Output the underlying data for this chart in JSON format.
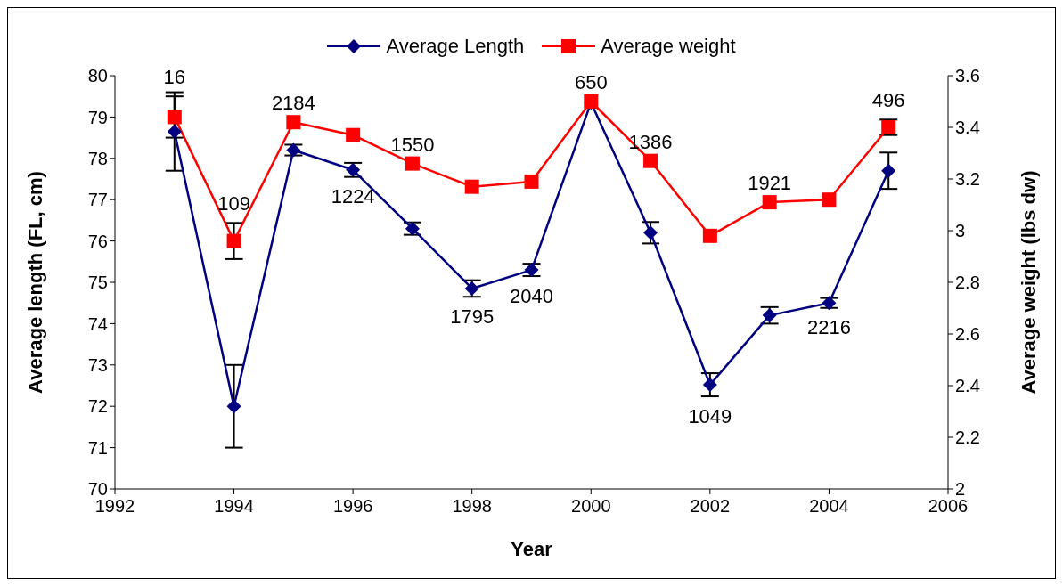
{
  "chart_data": {
    "type": "line",
    "xlabel": "Year",
    "ylabel": "Average length (FL, cm)",
    "y2label": "Average weight (lbs dw)",
    "x": [
      1993,
      1994,
      1995,
      1996,
      1997,
      1998,
      1999,
      2000,
      2001,
      2002,
      2003,
      2004,
      2005
    ],
    "series": [
      {
        "name": "Average Length",
        "color": "#000080",
        "marker": "diamond",
        "values": [
          78.65,
          72.0,
          78.2,
          77.72,
          76.3,
          74.85,
          75.3,
          79.35,
          76.2,
          72.52,
          74.2,
          74.5,
          77.7
        ],
        "errors": [
          0.95,
          1.0,
          0.13,
          0.17,
          0.15,
          0.2,
          0.15,
          null,
          0.26,
          0.28,
          0.2,
          0.12,
          0.44
        ]
      },
      {
        "name": "Average weight",
        "color": "#ff0000",
        "marker": "square",
        "axis": "y2",
        "values": [
          3.44,
          2.96,
          3.42,
          3.37,
          3.26,
          3.17,
          3.19,
          3.5,
          3.27,
          2.98,
          3.11,
          3.12,
          3.4
        ],
        "errors": [
          0.08,
          0.07,
          null,
          null,
          null,
          null,
          null,
          null,
          null,
          null,
          null,
          null,
          0.03
        ]
      }
    ],
    "xlim": [
      1992,
      2006
    ],
    "xticks": [
      1992,
      1994,
      1996,
      1998,
      2000,
      2002,
      2004,
      2006
    ],
    "ylim": [
      70,
      80
    ],
    "yticks": [
      70,
      71,
      72,
      73,
      74,
      75,
      76,
      77,
      78,
      79,
      80
    ],
    "y2lim": [
      2,
      3.6
    ],
    "y2ticks": [
      2,
      2.2,
      2.4,
      2.6,
      2.8,
      3,
      3.2,
      3.4,
      3.6
    ],
    "legend": "top",
    "grid": false,
    "line_style": "solid",
    "annotations": [
      "16",
      "109",
      "2184",
      {
        "text": "1224",
        "x": 1996,
        "y": 77.72
      },
      "1550",
      {
        "text": "1795",
        "x": 1998,
        "y": 74.85
      },
      {
        "text": "2040",
        "x": 1999,
        "y": 75.3
      },
      "650",
      "1386",
      {
        "text": "1049",
        "x": 2002,
        "y": 72.52
      },
      "1921",
      {
        "text": "2216",
        "x": 2004,
        "y": 74.5
      },
      "496"
    ]
  }
}
